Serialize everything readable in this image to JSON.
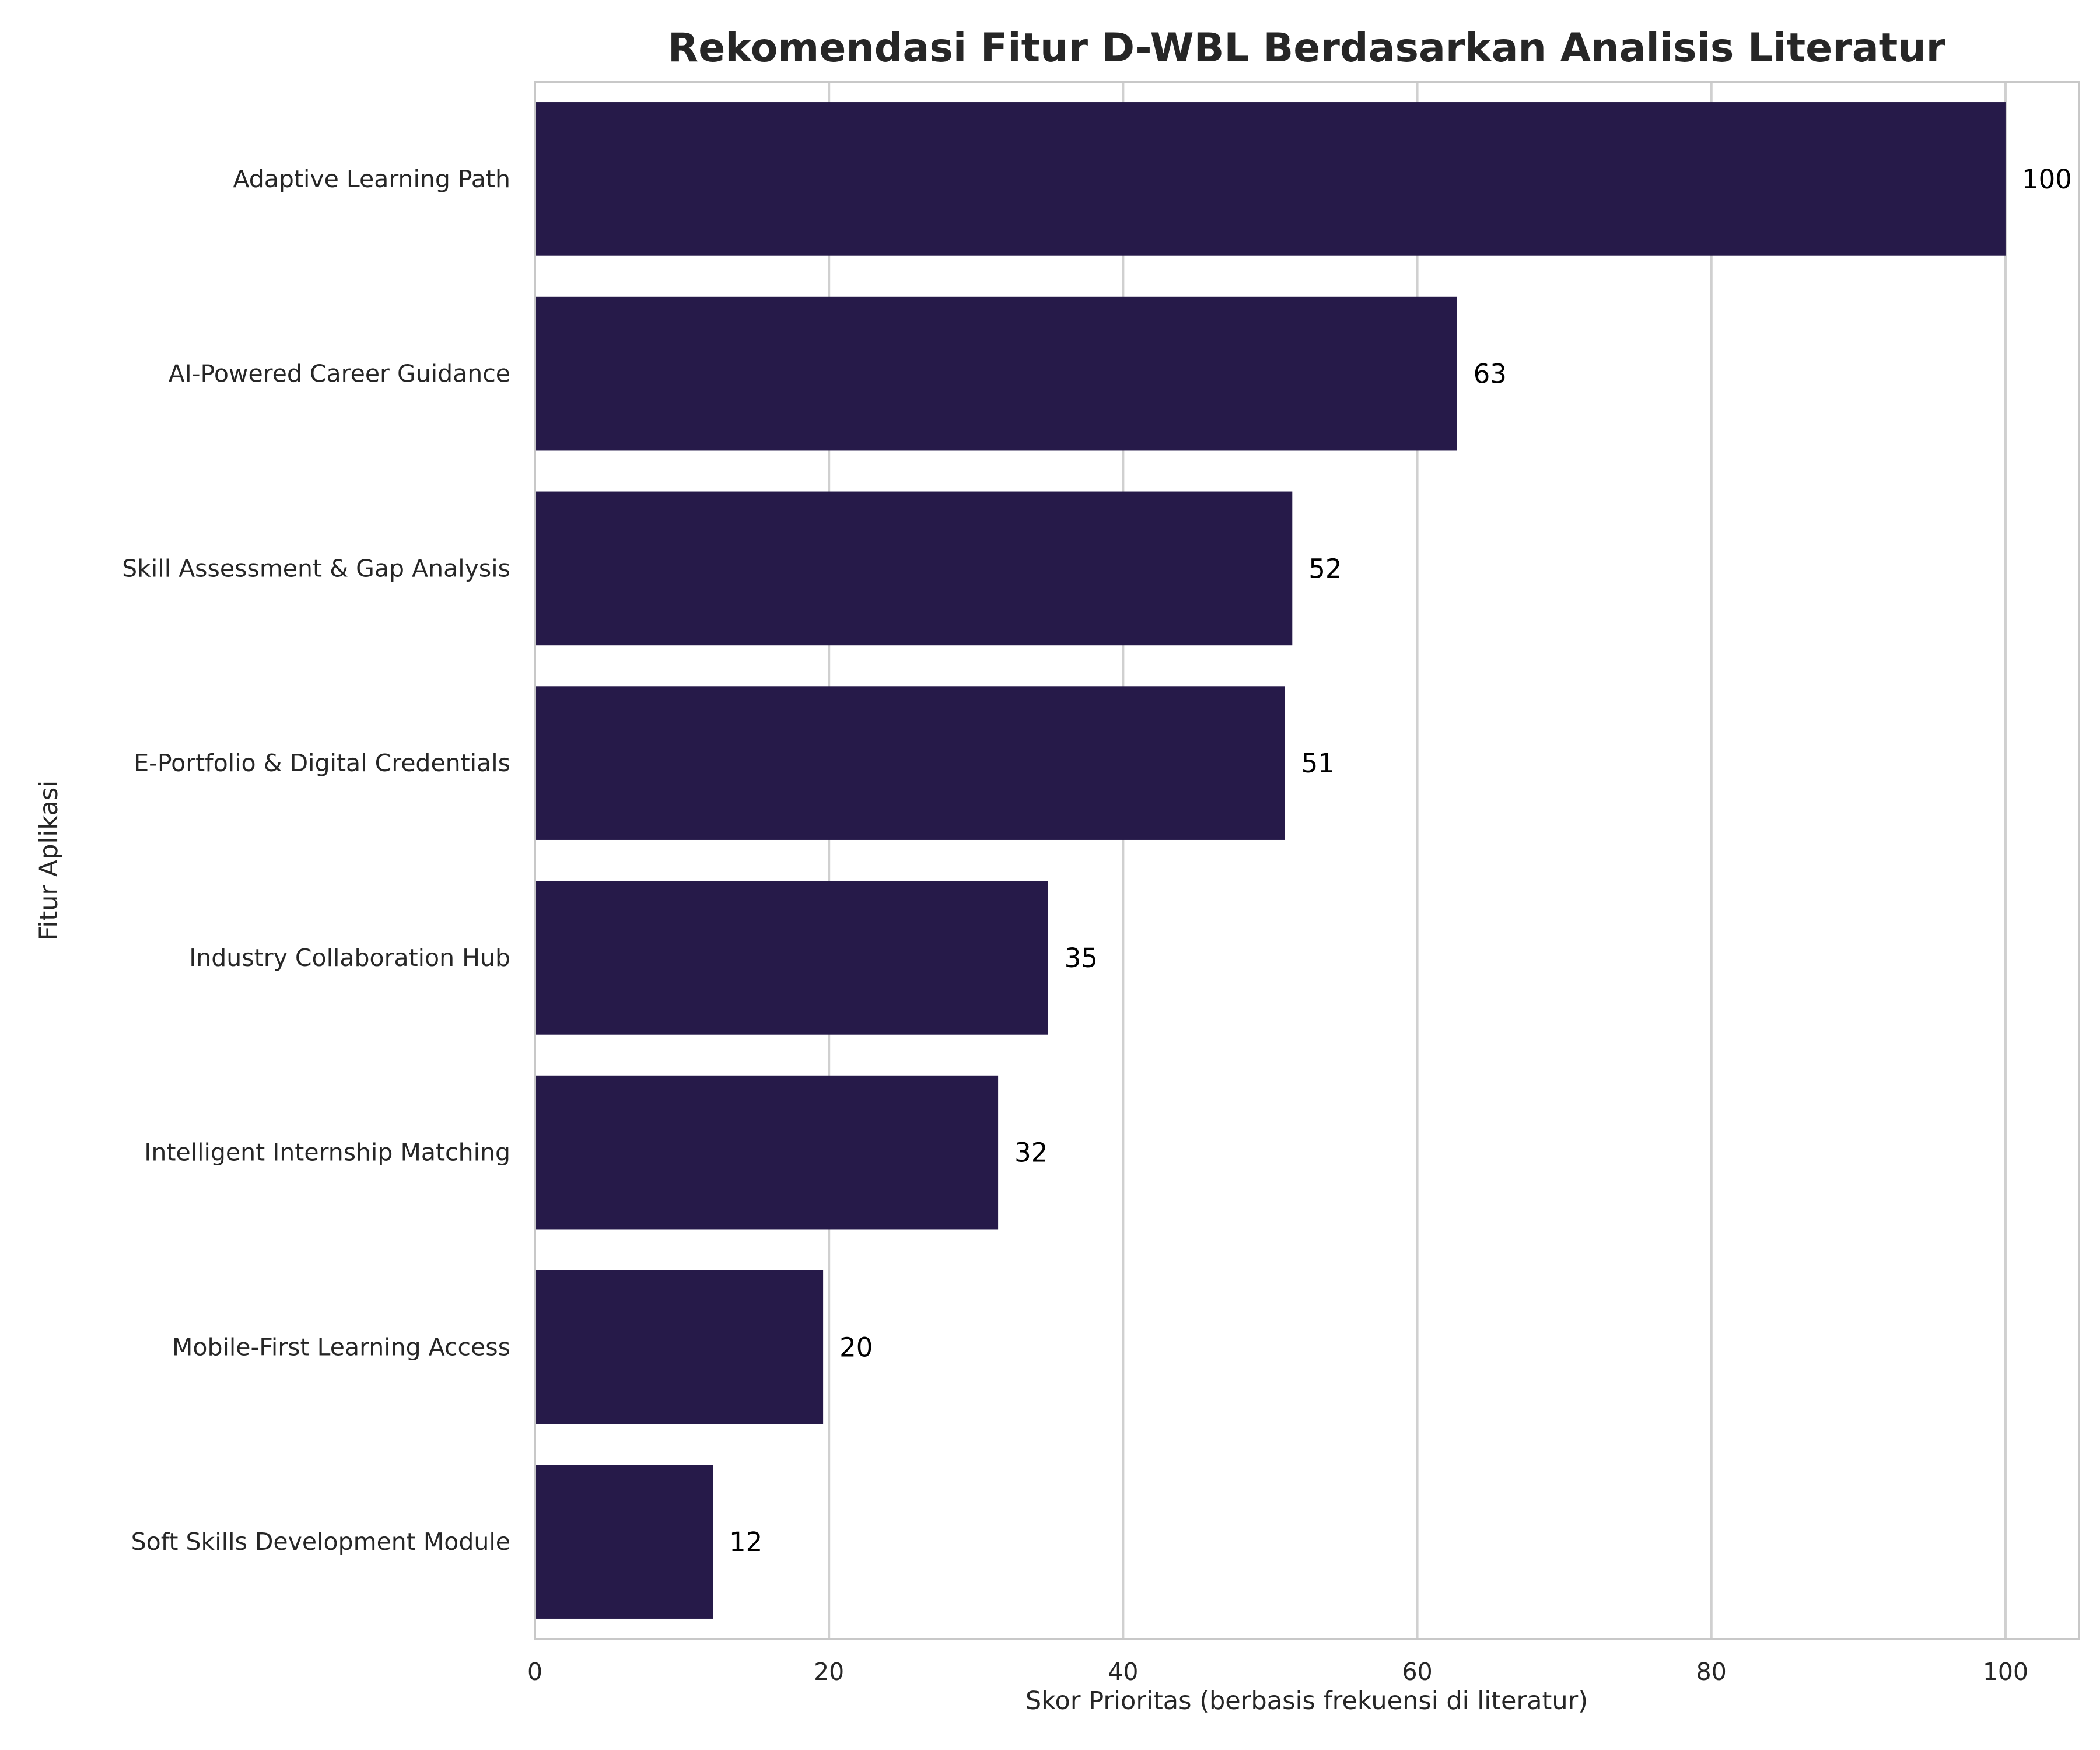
{
  "chart_data": {
    "type": "bar",
    "orientation": "horizontal",
    "title": "Rekomendasi Fitur D-WBL Berdasarkan Analisis Literatur",
    "xlabel": "Skor Prioritas (berbasis frekuensi di literatur)",
    "ylabel": "Fitur Aplikasi",
    "categories": [
      "Adaptive Learning Path",
      "AI-Powered Career Guidance",
      "Skill Assessment & Gap Analysis",
      "E-Portfolio & Digital Credentials",
      "Industry Collaboration Hub",
      "Intelligent Internship Matching",
      "Mobile-First Learning Access",
      "Soft Skills Development Module"
    ],
    "values": [
      100,
      62.7,
      51.5,
      51.0,
      34.9,
      31.5,
      19.6,
      12.1
    ],
    "data_labels": [
      "100",
      "63",
      "52",
      "51",
      "35",
      "32",
      "20",
      "12"
    ],
    "xlim": [
      0,
      105
    ],
    "xticks": [
      0,
      20,
      40,
      60,
      80,
      100
    ],
    "xtick_labels": [
      "0",
      "20",
      "40",
      "60",
      "80",
      "100"
    ],
    "grid": "vertical",
    "bar_color": "#261A49"
  }
}
